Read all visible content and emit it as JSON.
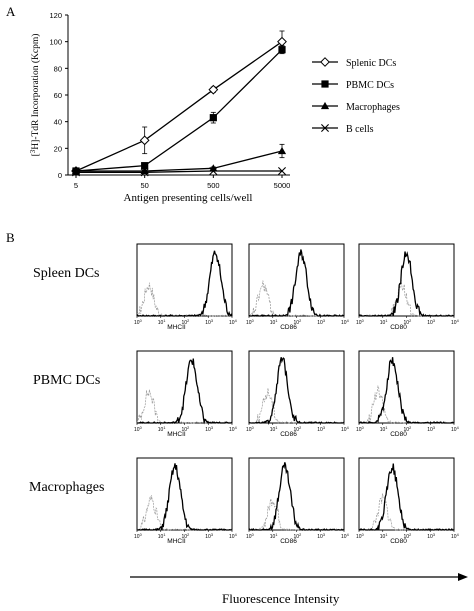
{
  "panels": {
    "a": "A",
    "b": "B"
  },
  "chart_data": [
    {
      "type": "line",
      "panel": "A",
      "xlabel": "Antigen presenting cells/well",
      "ylabel": "[3H]-TdR Incorporation (Kcpm)",
      "ylabel_super": "3",
      "ylabel_pre": "[",
      "ylabel_post": "H]-TdR Incorporation (Kcpm)",
      "categories": [
        "5",
        "50",
        "500",
        "5000"
      ],
      "y_ticks": [
        "0",
        "20",
        "40",
        "60",
        "80",
        "100",
        "120"
      ],
      "ylim": [
        0,
        120
      ],
      "grid": false,
      "legend_position": "right",
      "series": [
        {
          "name": "Splenic DCs",
          "marker": "open-diamond",
          "values": [
            3,
            26,
            64,
            100
          ],
          "errors": [
            1,
            10,
            2,
            8
          ]
        },
        {
          "name": "PBMC DCs",
          "marker": "filled-square",
          "values": [
            3,
            7,
            43,
            94
          ],
          "errors": [
            1,
            2,
            4,
            3
          ]
        },
        {
          "name": "Macrophages",
          "marker": "filled-triangle",
          "values": [
            3,
            3,
            5,
            18
          ],
          "errors": [
            0.5,
            0.5,
            1,
            5
          ]
        },
        {
          "name": "B cells",
          "marker": "cross",
          "values": [
            2,
            2,
            3,
            3
          ],
          "errors": [
            0,
            0,
            0,
            0
          ]
        }
      ]
    },
    {
      "type": "histogram-grid",
      "panel": "B",
      "rows": [
        "Spleen DCs",
        "PBMC DCs",
        "Macrophages"
      ],
      "markers": [
        "MHCII",
        "CD86",
        "CD80"
      ],
      "x_axis": "Fluorescence Intensity",
      "x_tick_exponents": [
        "0",
        "1",
        "2",
        "3",
        "4"
      ],
      "x_tick_base": "10",
      "x_range_decades": [
        0,
        4
      ],
      "stained_peak_decade": [
        [
          3.3,
          2.2,
          2.0
        ],
        [
          2.3,
          1.4,
          1.4
        ],
        [
          1.6,
          1.5,
          1.4
        ]
      ],
      "isotype_peak_decade": [
        [
          0.5,
          0.6,
          1.8
        ],
        [
          0.5,
          0.8,
          0.8
        ],
        [
          0.6,
          1.0,
          1.0
        ]
      ]
    }
  ]
}
